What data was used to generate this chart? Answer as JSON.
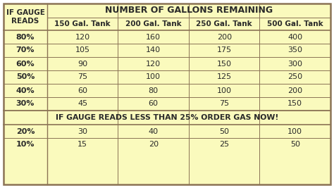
{
  "title_header": "NUMBER OF GALLONS REMAINING",
  "col_header_left": "IF GAUGE\nREADS",
  "col_headers": [
    "150 Gal. Tank",
    "200 Gal. Tank",
    "250 Gal. Tank",
    "500 Gal. Tank"
  ],
  "rows_normal": [
    [
      "80%",
      "120",
      "160",
      "200",
      "400"
    ],
    [
      "70%",
      "105",
      "140",
      "175",
      "350"
    ],
    [
      "60%",
      "90",
      "120",
      "150",
      "300"
    ],
    [
      "50%",
      "75",
      "100",
      "125",
      "250"
    ],
    [
      "40%",
      "60",
      "80",
      "100",
      "200"
    ],
    [
      "30%",
      "45",
      "60",
      "75",
      "150"
    ]
  ],
  "warning_text": "IF GAUGE READS LESS THAN 25% ORDER GAS NOW!",
  "rows_warning": [
    [
      "20%",
      "30",
      "40",
      "50",
      "100"
    ],
    [
      "10%",
      "15",
      "20",
      "25",
      "50"
    ]
  ],
  "bg_color": "#FAFABD",
  "border_color": "#8B7355",
  "text_color": "#2a2a2a",
  "figsize": [
    4.74,
    2.67
  ],
  "dpi": 100
}
